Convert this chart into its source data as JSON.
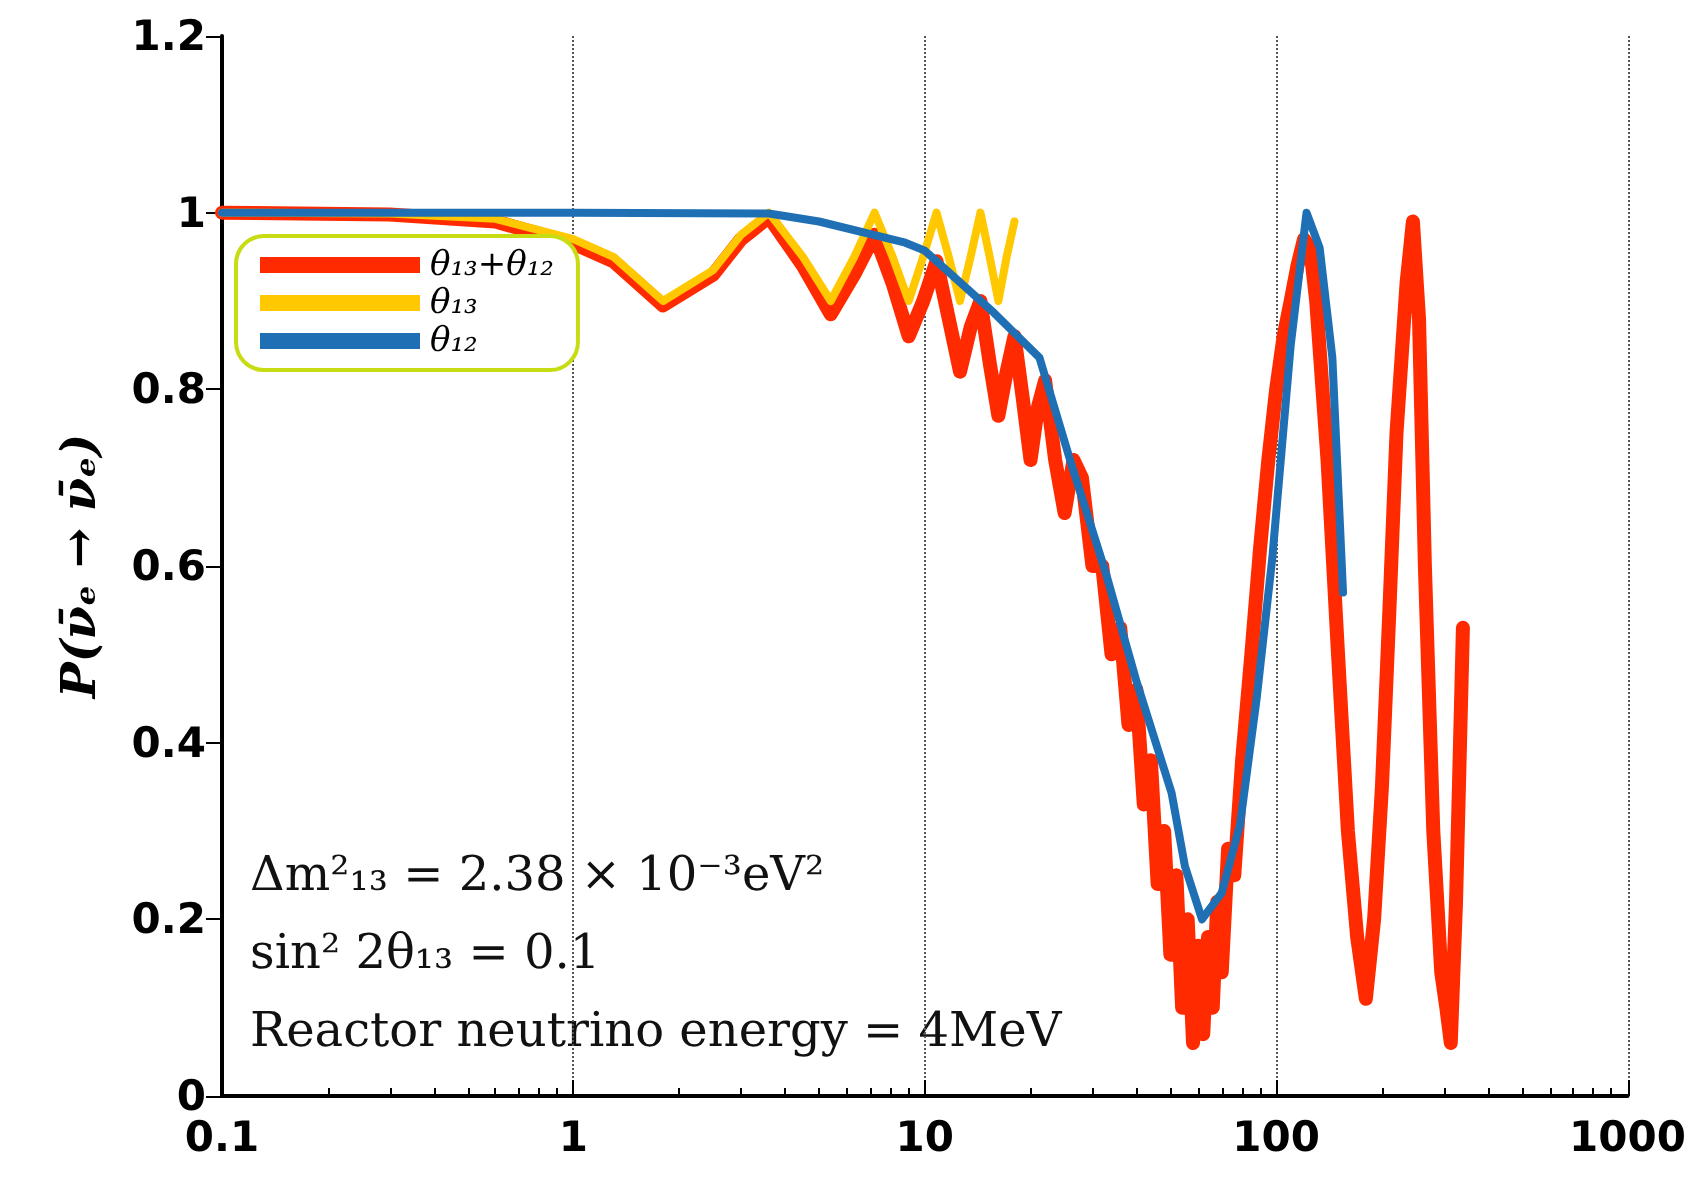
{
  "chart_data": {
    "type": "line",
    "ylabel": "P(ν̄ₑ → ν̄ₑ)",
    "log": "x",
    "xlim": [
      0.1,
      1000
    ],
    "xticks": [
      0.1,
      1,
      10,
      100,
      1000
    ],
    "ylim": [
      0,
      1.2
    ],
    "yticks": [
      0,
      0.2,
      0.4,
      0.6,
      0.8,
      1,
      1.2
    ],
    "grid": "x",
    "legend": "top left",
    "marker": "none",
    "line_style": "solid",
    "annotations": [
      "Δm²₁₃ = 2.38 × 10⁻³eV²",
      "sin² 2θ₁₃ = 0.1",
      "Reactor neutrino energy = 4MeV"
    ],
    "series": [
      {
        "name": "θ₁₃+θ₁₂",
        "color": "#ff2a00",
        "x": [
          0.1,
          0.3,
          0.6,
          1,
          1.3,
          1.8,
          2.5,
          3.0,
          3.6,
          4.5,
          5.4,
          6.3,
          7.2,
          8.1,
          9,
          9.9,
          10.8,
          11.7,
          12.6,
          13.5,
          14.4,
          15.3,
          16.2,
          17.1,
          18,
          19,
          20,
          21,
          22,
          23.5,
          25,
          26.5,
          28,
          30,
          32,
          34,
          36,
          38,
          40,
          42,
          44,
          46,
          48,
          50,
          52,
          54,
          56,
          58,
          60,
          62,
          64,
          66,
          68,
          70,
          73,
          76,
          80,
          85,
          90,
          95,
          100,
          105,
          110,
          115,
          120,
          125,
          130,
          140,
          150,
          160,
          170,
          180,
          190,
          200,
          210,
          220,
          235,
          245,
          255,
          265,
          280,
          295,
          305,
          314,
          325,
          340
        ],
        "values": [
          1.0,
          0.998,
          0.99,
          0.965,
          0.945,
          0.895,
          0.93,
          0.97,
          0.995,
          0.94,
          0.885,
          0.93,
          0.975,
          0.92,
          0.86,
          0.9,
          0.945,
          0.88,
          0.82,
          0.87,
          0.9,
          0.83,
          0.77,
          0.82,
          0.86,
          0.79,
          0.72,
          0.78,
          0.81,
          0.72,
          0.66,
          0.72,
          0.7,
          0.6,
          0.6,
          0.5,
          0.53,
          0.42,
          0.46,
          0.33,
          0.38,
          0.24,
          0.3,
          0.16,
          0.25,
          0.1,
          0.2,
          0.06,
          0.17,
          0.07,
          0.18,
          0.1,
          0.22,
          0.14,
          0.28,
          0.25,
          0.38,
          0.5,
          0.62,
          0.72,
          0.8,
          0.86,
          0.9,
          0.94,
          0.97,
          0.96,
          0.9,
          0.72,
          0.5,
          0.3,
          0.18,
          0.11,
          0.2,
          0.35,
          0.55,
          0.75,
          0.92,
          0.99,
          0.88,
          0.6,
          0.3,
          0.14,
          0.1,
          0.06,
          0.22,
          0.53
        ]
      },
      {
        "name": "θ₁₃",
        "color": "#ffc800",
        "x": [
          0.1,
          0.3,
          0.6,
          1,
          1.3,
          1.8,
          2.5,
          3.0,
          3.6,
          4.5,
          5.4,
          6.3,
          7.2,
          8.1,
          9,
          9.9,
          10.8,
          11.7,
          12.6,
          13.5,
          14.4,
          15.3,
          16.2,
          17.1,
          18
        ],
        "values": [
          1.0,
          0.999,
          0.993,
          0.97,
          0.95,
          0.9,
          0.935,
          0.975,
          1.0,
          0.95,
          0.9,
          0.95,
          1.0,
          0.95,
          0.9,
          0.95,
          1.0,
          0.95,
          0.9,
          0.95,
          1.0,
          0.95,
          0.9,
          0.95,
          0.99
        ]
      },
      {
        "name": "θ₁₂",
        "color": "#1f6fb4",
        "x": [
          0.1,
          1,
          3.6,
          5,
          8.8,
          10,
          15.5,
          21.2,
          26.1,
          32.7,
          40,
          50.4,
          55,
          61.5,
          70,
          78.9,
          88,
          97.5,
          110,
          122,
          133,
          144.5,
          155
        ],
        "values": [
          1.0,
          1.0,
          0.999,
          0.99,
          0.966,
          0.957,
          0.889,
          0.836,
          0.716,
          0.593,
          0.47,
          0.343,
          0.26,
          0.2,
          0.23,
          0.307,
          0.45,
          0.609,
          0.85,
          1.0,
          0.96,
          0.836,
          0.57
        ]
      }
    ]
  }
}
